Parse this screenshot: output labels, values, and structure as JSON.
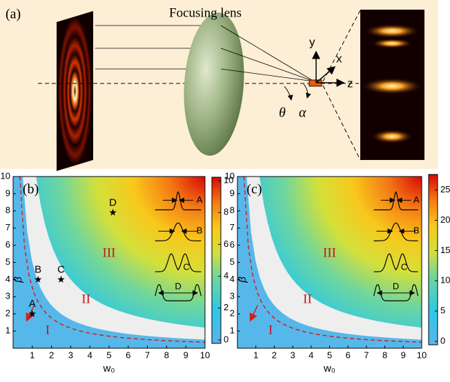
{
  "panel_a": {
    "label": "(a)",
    "lens_label": "Focusing lens",
    "axis_labels": [
      "y",
      "x",
      "z"
    ],
    "angle_labels": [
      "θ",
      "α"
    ]
  },
  "chart_data": [
    {
      "type": "heatmap",
      "panel_label": "(b)",
      "xlabel": "w₀",
      "ylabel": "β",
      "xlim": [
        0,
        10
      ],
      "xticks": [
        1,
        2,
        3,
        4,
        5,
        6,
        7,
        8,
        9,
        10
      ],
      "ylim": [
        0,
        10
      ],
      "yticks": [
        1,
        2,
        3,
        4,
        5,
        6,
        7,
        8,
        9,
        10
      ],
      "clim": [
        0,
        10
      ],
      "cticks": [
        0,
        2,
        4,
        6,
        8,
        10
      ],
      "region_labels": [
        "I",
        "II",
        "III"
      ],
      "points": [
        {
          "label": "A",
          "x": 1,
          "y": 2
        },
        {
          "label": "B",
          "x": 1.3,
          "y": 4
        },
        {
          "label": "C",
          "x": 2.5,
          "y": 4
        },
        {
          "label": "D",
          "x": 5.2,
          "y": 7.9
        }
      ],
      "inset_labels": [
        "A",
        "B",
        "C",
        "D"
      ]
    },
    {
      "type": "heatmap",
      "panel_label": "(c)",
      "xlabel": "w₀",
      "ylabel": "β",
      "xlim": [
        0,
        10
      ],
      "xticks": [
        1,
        2,
        3,
        4,
        5,
        6,
        7,
        8,
        9,
        10
      ],
      "ylim": [
        0,
        10
      ],
      "yticks": [
        1,
        2,
        3,
        4,
        5,
        6,
        7,
        8,
        9,
        10
      ],
      "clim": [
        0,
        27
      ],
      "cticks": [
        0,
        5,
        10,
        15,
        20,
        25
      ],
      "region_labels": [
        "I",
        "II",
        "III"
      ],
      "inset_labels": [
        "A",
        "B",
        "C",
        "D"
      ]
    }
  ]
}
